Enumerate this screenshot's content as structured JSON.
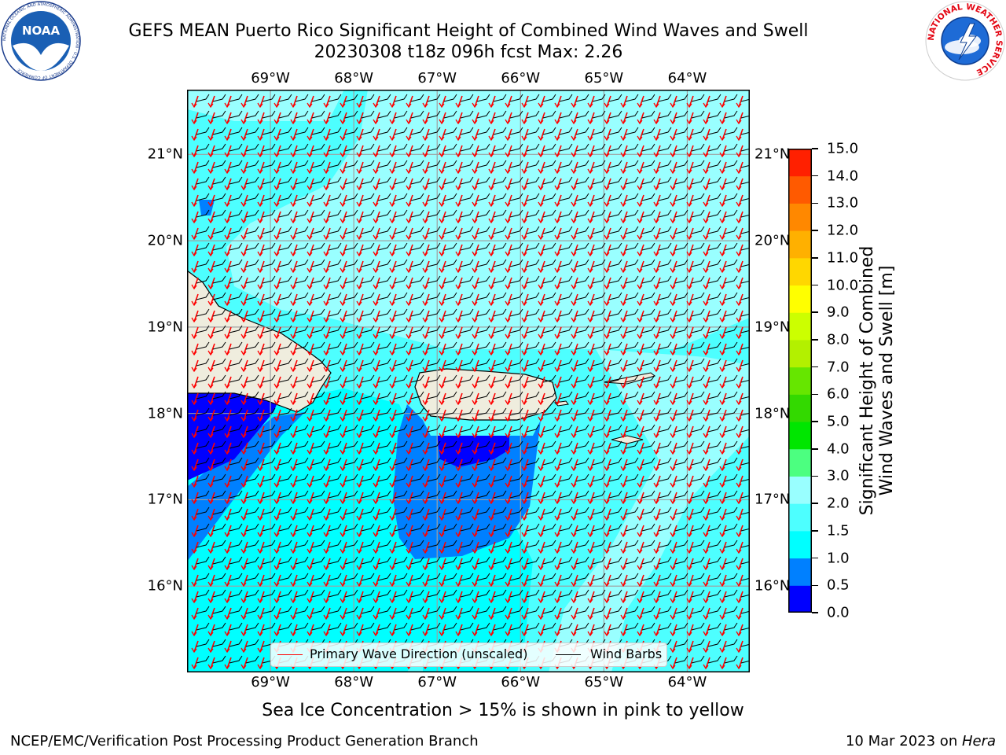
{
  "header": {
    "title_line1": "GEFS MEAN Puerto Rico Significant Height of Combined Wind Waves and Swell",
    "title_line2": "20230308 t18z 096h fcst   Max: 2.26",
    "noaa_logo_text": "NOAA",
    "noaa_ring_text": "NATIONAL OCEANIC AND ATMOSPHERIC ADMINISTRATION · U.S. DEPARTMENT OF COMMERCE",
    "nws_ring_text": "NATIONAL WEATHER SERVICE"
  },
  "map": {
    "lon_labels": [
      "69°W",
      "68°W",
      "67°W",
      "66°W",
      "65°W",
      "64°W"
    ],
    "lat_labels": [
      "21°N",
      "20°N",
      "19°N",
      "18°N",
      "17°N",
      "16°N"
    ],
    "lon_range": [
      -70.0,
      -63.25
    ],
    "lat_range": [
      15.0,
      21.75
    ],
    "grid": true,
    "land_color": "#efedde",
    "coast_color": "#000000",
    "wave_arrow_color": "#ff0000",
    "barb_color": "#000000"
  },
  "colorbar": {
    "ticks": [
      "15.0",
      "14.0",
      "13.0",
      "12.0",
      "11.0",
      "10.0",
      "9.0",
      "8.0",
      "7.0",
      "6.0",
      "5.0",
      "4.0",
      "3.0",
      "2.0",
      "1.5",
      "1.0",
      "0.5",
      "0.0"
    ],
    "levels": [
      0.0,
      0.5,
      1.0,
      1.5,
      2.0,
      3.0,
      4.0,
      5.0,
      6.0,
      7.0,
      8.0,
      9.0,
      10.0,
      11.0,
      12.0,
      13.0,
      14.0,
      15.0
    ],
    "colors": [
      "#0000ff",
      "#0080ff",
      "#00ffff",
      "#4dffff",
      "#99ffff",
      "#4cff80",
      "#00e600",
      "#33d900",
      "#66e600",
      "#b3f000",
      "#ccff00",
      "#ffff00",
      "#ffd700",
      "#ffb000",
      "#ff8800",
      "#ff5a00",
      "#ff2000"
    ],
    "label_line1": "Significant Height of Combined",
    "label_line2": "Wind Waves and Swell [m]"
  },
  "legend": {
    "primary_wave": "Primary Wave Direction (unscaled)",
    "wind_barbs": "Wind Barbs",
    "placement": "lower center"
  },
  "footer": {
    "sea_ice_note": "Sea Ice Concentration > 15% is shown in pink to yellow",
    "branch": "NCEP/EMC/Verification Post Processing Product Generation Branch",
    "date": "10 Mar 2023 on ",
    "host": "Hera"
  }
}
